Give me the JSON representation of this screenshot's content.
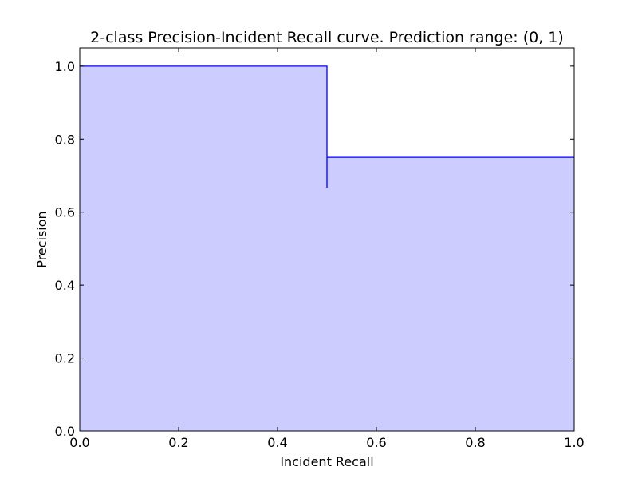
{
  "chart_data": {
    "type": "area",
    "title": "2-class Precision-Incident Recall curve. Prediction range: (0, 1)",
    "xlabel": "Incident Recall",
    "ylabel": "Precision",
    "xlim": [
      0.0,
      1.0
    ],
    "ylim": [
      0.0,
      1.05
    ],
    "xticks": [
      0.0,
      0.2,
      0.4,
      0.6,
      0.8,
      1.0
    ],
    "xtick_labels": [
      "0.0",
      "0.2",
      "0.4",
      "0.6",
      "0.8",
      "1.0"
    ],
    "yticks": [
      0.0,
      0.2,
      0.4,
      0.6,
      0.8,
      1.0
    ],
    "ytick_labels": [
      "0.0",
      "0.2",
      "0.4",
      "0.6",
      "0.8",
      "1.0"
    ],
    "grid": false,
    "step": "post",
    "series": [
      {
        "recall": [
          0.0,
          0.5,
          0.5,
          0.5,
          1.0
        ],
        "precision": [
          1.0,
          1.0,
          0.667,
          0.75,
          0.75
        ],
        "line_color": "#0000ff",
        "fill_color": "#ccccff"
      }
    ]
  }
}
